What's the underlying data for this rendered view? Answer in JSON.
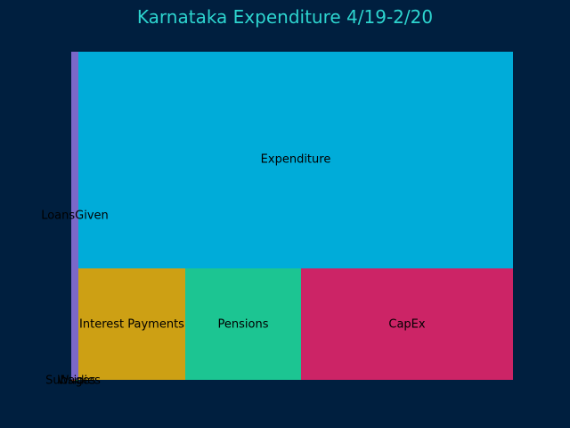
{
  "chart_data": {
    "type": "treemap",
    "title": "Karnataka Expenditure 4/19-2/20",
    "items": [
      {
        "name": "LoansGiven",
        "color": "#7b68c9"
      },
      {
        "name": "Subsidies",
        "color": "#ff6f3c"
      },
      {
        "name": "Wages",
        "color": "#2ecc71"
      },
      {
        "name": "Expenditure",
        "color": "#00acd9"
      },
      {
        "name": "Interest Payments",
        "color": "#cda014"
      },
      {
        "name": "Pensions",
        "color": "#1cc592"
      },
      {
        "name": "CapEx",
        "color": "#cc2466"
      }
    ]
  }
}
